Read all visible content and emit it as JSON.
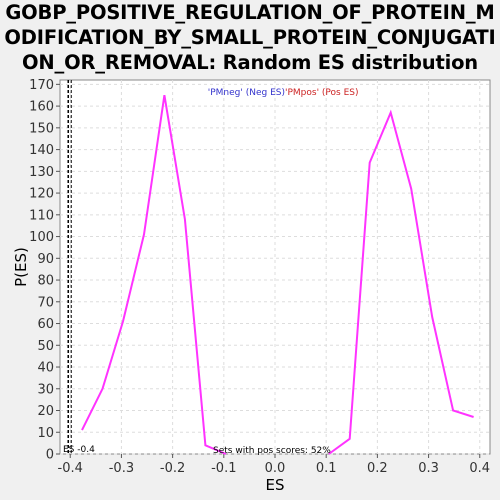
{
  "title_lines": [
    "GOBP_POSITIVE_REGULATION_OF_PROTEIN_M",
    "ODIFICATION_BY_SMALL_PROTEIN_CONJUGATI",
    "ON_OR_REMOVAL: Random ES distribution"
  ],
  "legend": {
    "neg": "'PMneg' (Neg ES)",
    "pos": "'PMpos' (Pos ES)"
  },
  "annotations": {
    "es_marker": "ES -0.4",
    "pos_scores": "Sets with pos scores: 52%"
  },
  "colors": {
    "curve": "#ff33ff",
    "neg_legend": "#3333cc",
    "pos_legend": "#cc2222",
    "plot_bg": "#ffffff",
    "grid": "#dddddd"
  },
  "chart_data": {
    "type": "line",
    "title": "GOBP_POSITIVE_REGULATION_OF_PROTEIN_MODIFICATION_BY_SMALL_PROTEIN_CONJUGATION_OR_REMOVAL: Random ES distribution",
    "xlabel": "ES",
    "ylabel": "P(ES)",
    "xlim": [
      -0.42,
      0.42
    ],
    "ylim": [
      0,
      172
    ],
    "xticks": [
      -0.4,
      -0.3,
      -0.2,
      -0.1,
      0.0,
      0.1,
      0.2,
      0.3,
      0.4
    ],
    "xtick_labels": [
      "-0.4",
      "-0.3",
      "-0.2",
      "-0.1",
      "0.0",
      "0.1",
      "0.2",
      "0.3",
      "0.4"
    ],
    "yticks": [
      0,
      10,
      20,
      30,
      40,
      50,
      60,
      70,
      80,
      90,
      100,
      110,
      120,
      130,
      140,
      150,
      160,
      170
    ],
    "grid": true,
    "es_line_x": -0.4,
    "series": [
      {
        "name": "'PMneg' (Neg ES)",
        "x": [
          -0.377,
          -0.337,
          -0.297,
          -0.256,
          -0.216,
          -0.176,
          -0.136,
          -0.096
        ],
        "y": [
          11,
          30,
          61,
          101,
          165,
          108,
          4,
          0
        ]
      },
      {
        "name": "'PMpos' (Pos ES)",
        "x": [
          0.105,
          0.146,
          0.185,
          0.226,
          0.266,
          0.307,
          0.348,
          0.388
        ],
        "y": [
          0,
          7,
          134,
          157,
          122,
          63,
          20,
          17
        ]
      }
    ]
  }
}
